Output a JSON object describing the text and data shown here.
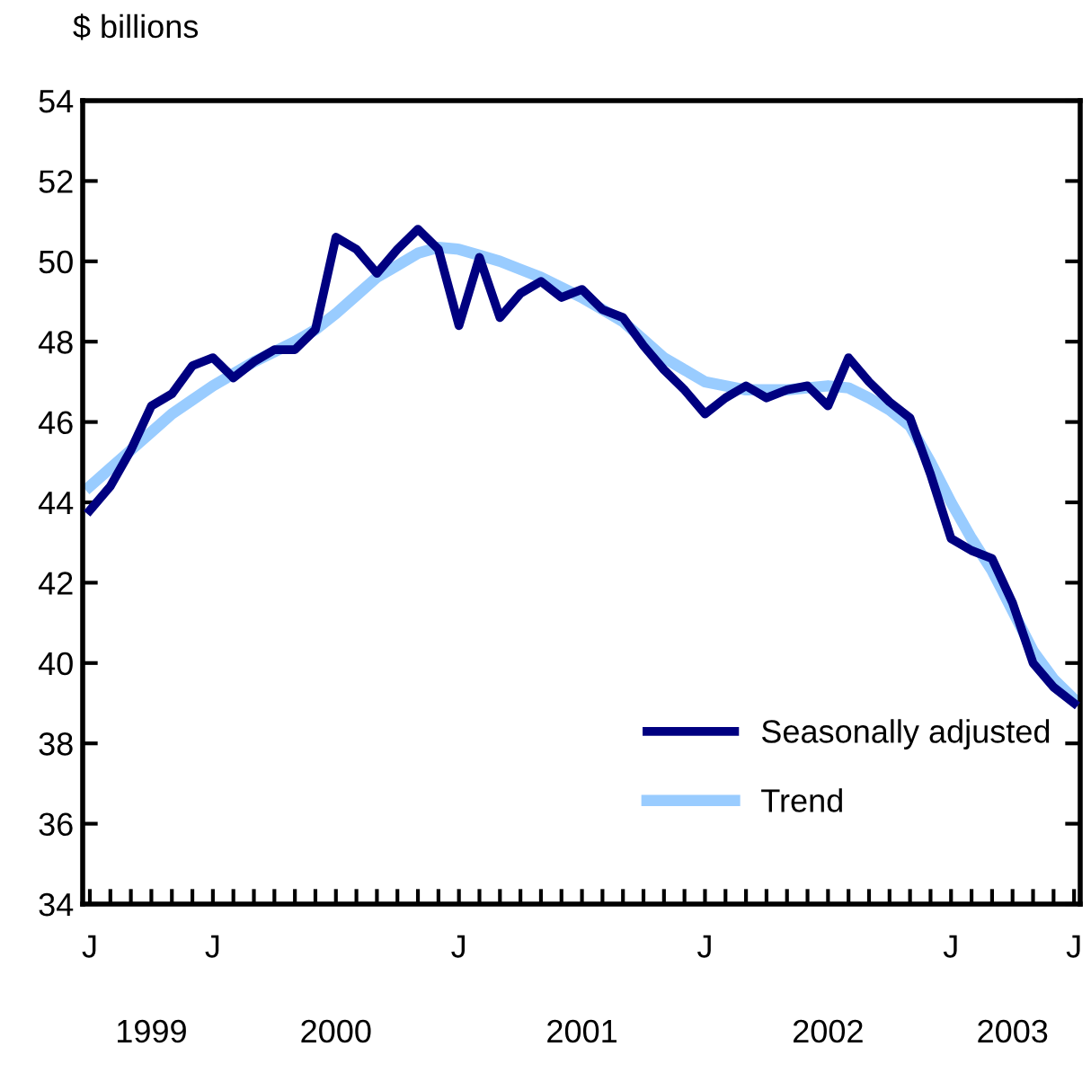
{
  "chart_data": {
    "type": "line",
    "ylabel": "$ billions",
    "categories": [
      "J",
      null,
      null,
      null,
      null,
      null,
      "J",
      null,
      null,
      null,
      null,
      null,
      null,
      null,
      null,
      null,
      null,
      null,
      "J",
      null,
      null,
      null,
      null,
      null,
      null,
      null,
      null,
      null,
      null,
      null,
      "J",
      null,
      null,
      null,
      null,
      null,
      null,
      null,
      null,
      null,
      null,
      null,
      "J",
      null,
      null,
      null,
      null,
      null,
      "J"
    ],
    "series": [
      {
        "name": "Seasonally adjusted",
        "color": "#000080",
        "values": [
          43.8,
          44.4,
          45.3,
          46.4,
          46.7,
          47.4,
          47.6,
          47.1,
          47.5,
          47.8,
          47.8,
          48.3,
          50.6,
          50.3,
          49.7,
          50.3,
          50.8,
          50.3,
          48.4,
          50.1,
          48.6,
          49.2,
          49.5,
          49.1,
          49.3,
          48.8,
          48.6,
          47.9,
          47.3,
          46.8,
          46.2,
          46.6,
          46.9,
          46.6,
          46.8,
          46.9,
          46.4,
          47.6,
          47.0,
          46.5,
          46.1,
          44.7,
          43.1,
          42.8,
          42.6,
          41.5,
          40.0,
          39.4,
          39.0
        ]
      },
      {
        "name": "Trend",
        "color": "#99ccff",
        "values": [
          44.4,
          44.85,
          45.3,
          45.75,
          46.2,
          46.55,
          46.9,
          47.2,
          47.5,
          47.75,
          48.0,
          48.3,
          48.7,
          49.15,
          49.6,
          49.9,
          50.2,
          50.35,
          50.3,
          50.15,
          50.0,
          49.8,
          49.6,
          49.35,
          49.1,
          48.8,
          48.5,
          48.05,
          47.6,
          47.3,
          47.0,
          46.9,
          46.8,
          46.8,
          46.8,
          46.85,
          46.9,
          46.85,
          46.6,
          46.3,
          45.9,
          45.0,
          44.0,
          43.1,
          42.3,
          41.3,
          40.3,
          39.6,
          39.1
        ]
      }
    ],
    "ylim": [
      34,
      54
    ],
    "yticks": [
      34,
      36,
      38,
      40,
      42,
      44,
      46,
      48,
      50,
      52,
      54
    ],
    "annotations": [
      "1999",
      "2000",
      "2001",
      "2002",
      "2003"
    ],
    "legend": "bottom right",
    "grid": false,
    "marker": "none",
    "line_style": "solid"
  }
}
